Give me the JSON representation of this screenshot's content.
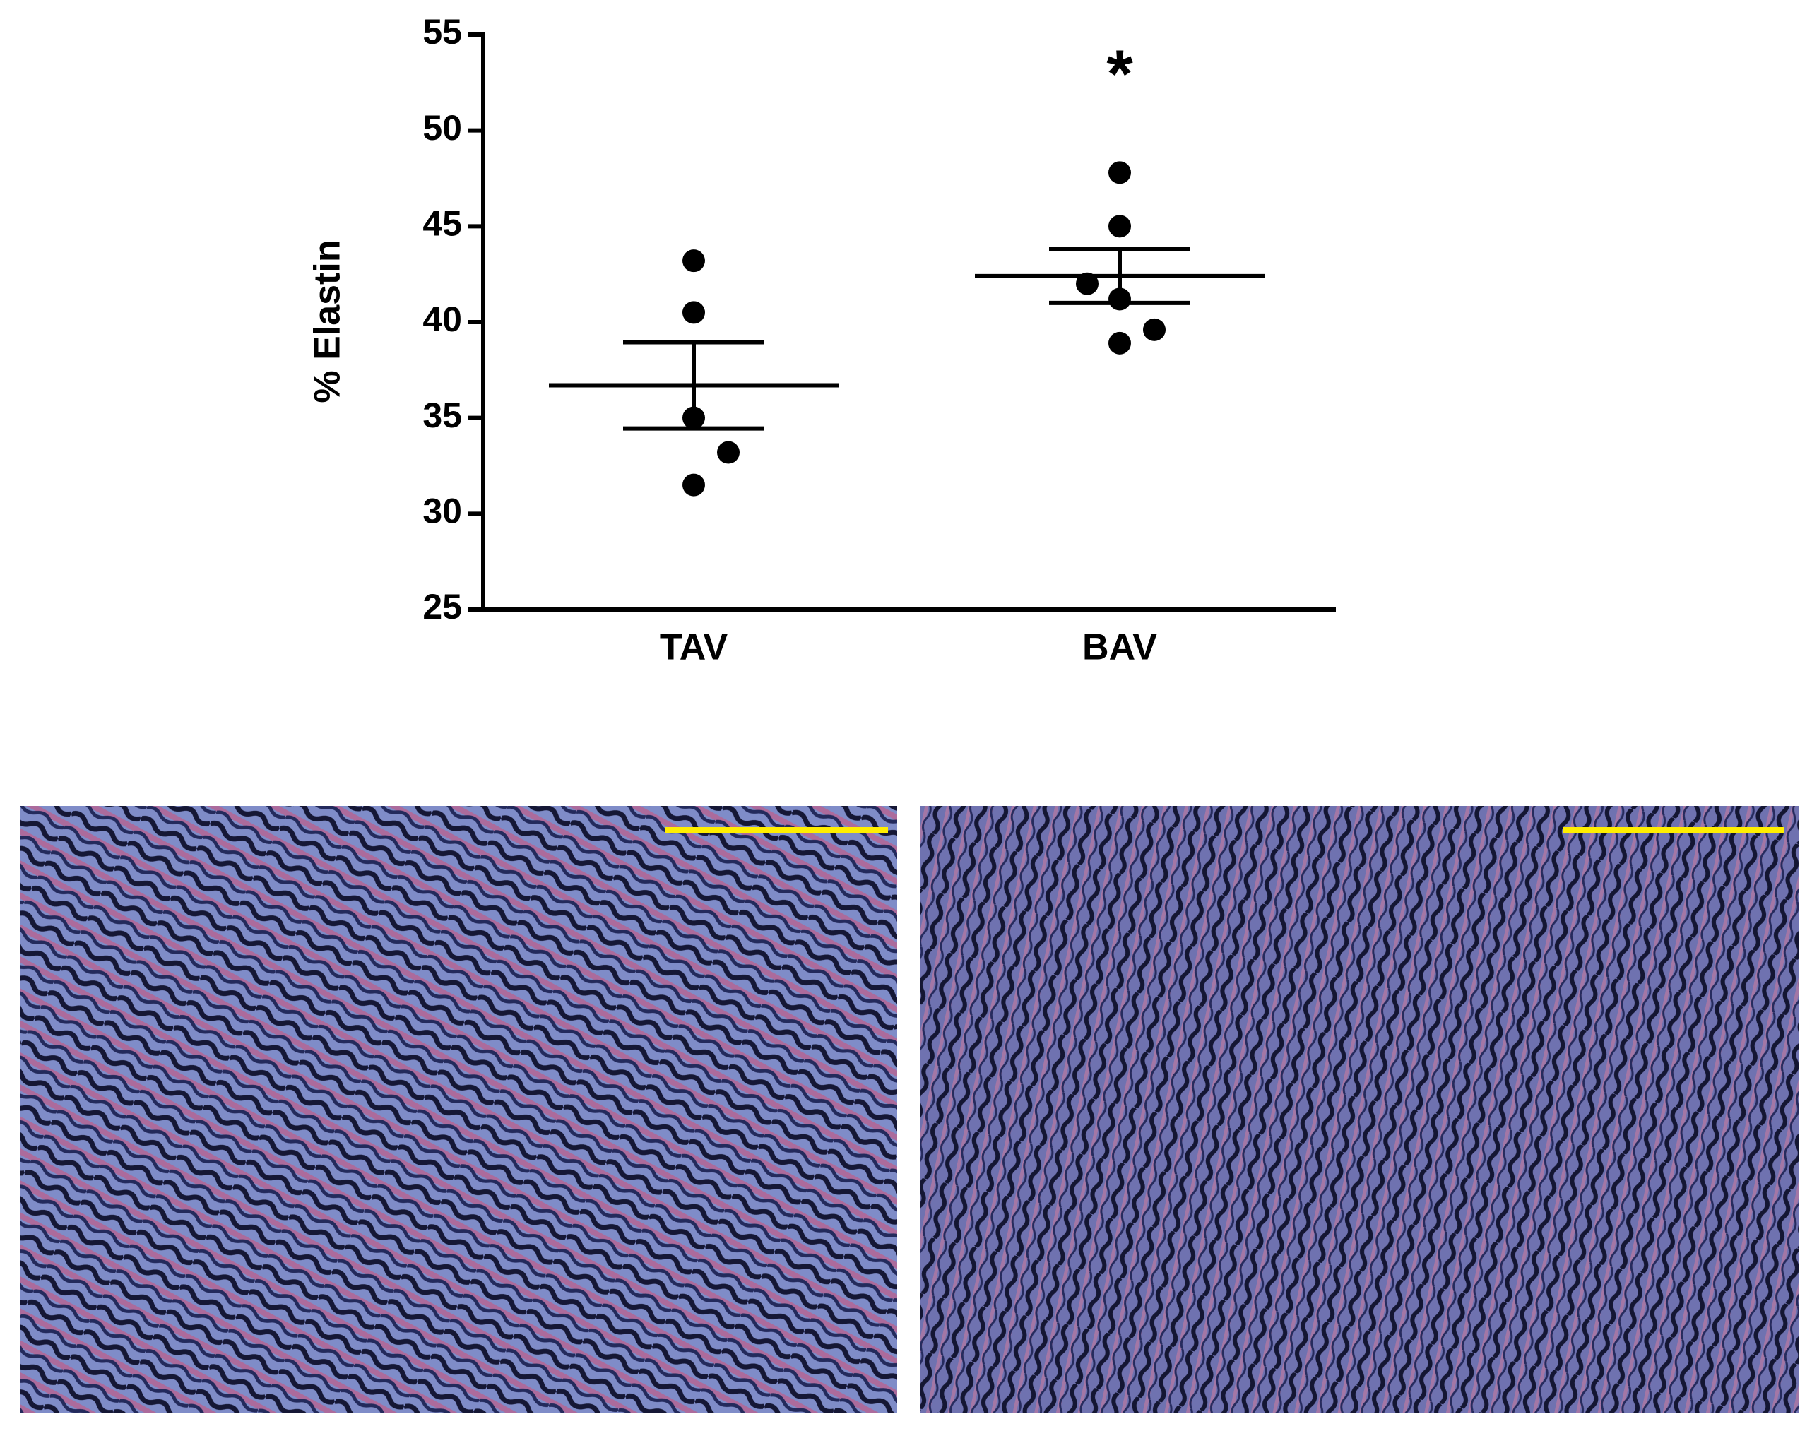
{
  "chart_data": {
    "type": "dotplot",
    "y_label": "% Elastin",
    "categories": [
      "TAV",
      "BAV"
    ],
    "groups": [
      {
        "values": [
          43.2,
          40.5,
          35.0,
          33.2,
          31.5
        ],
        "mean": 36.7,
        "error": 2.25
      },
      {
        "values": [
          47.8,
          45.0,
          42.0,
          41.2,
          39.6,
          38.9
        ],
        "mean": 42.4,
        "error": 1.4,
        "annotation": "*"
      }
    ],
    "color": "#000000",
    "ylim": [
      25,
      55
    ],
    "yticks": [
      25,
      30,
      35,
      40,
      45,
      50,
      55
    ]
  }
}
